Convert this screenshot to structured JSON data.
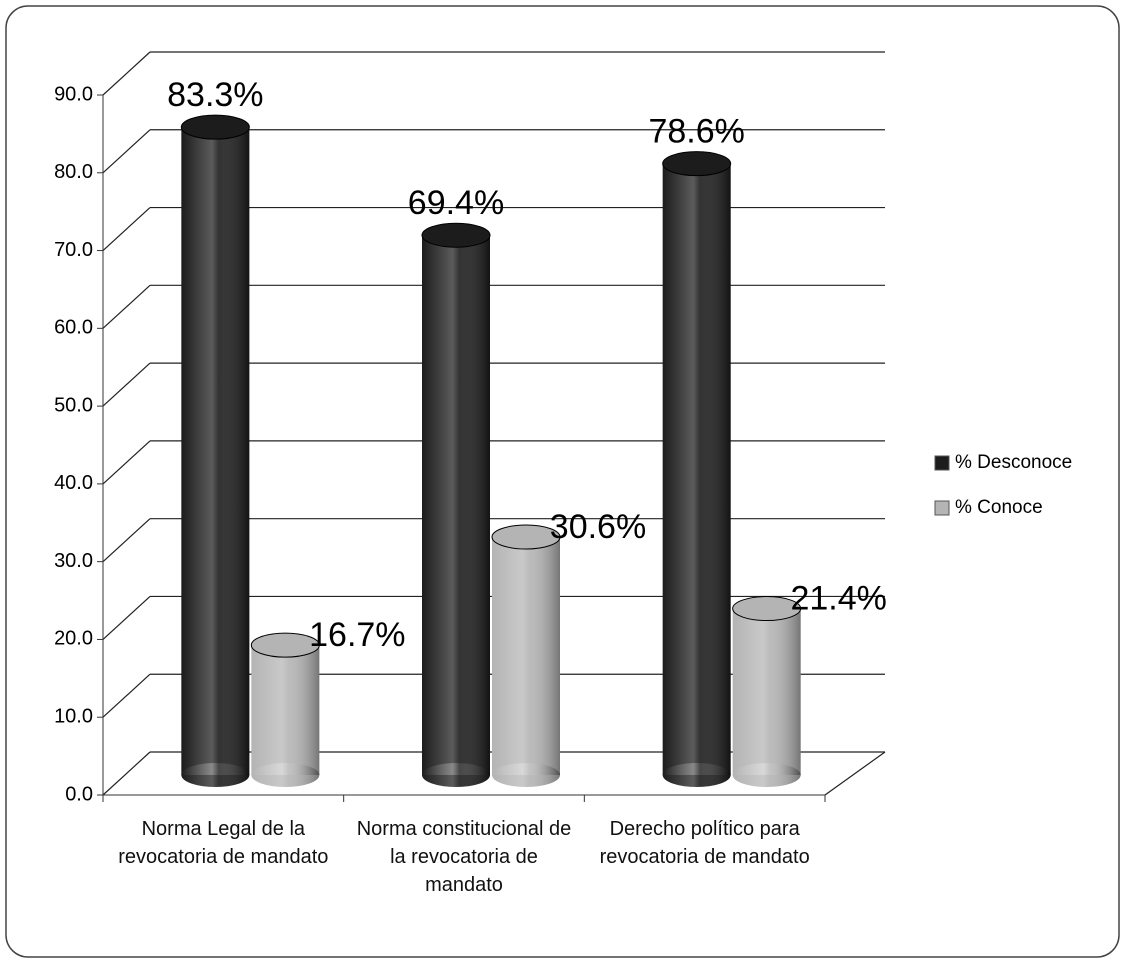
{
  "chart_data": {
    "type": "bar3d",
    "categories": [
      "Norma Legal de la revocatoria de mandato",
      "Norma constitucional de la revocatoria de mandato",
      "Derecho político para revocatoria de mandato"
    ],
    "series": [
      {
        "name": "% Desconoce",
        "color": "#1c1c1c",
        "values": [
          83.3,
          69.4,
          78.6
        ],
        "value_labels": [
          "83.3%",
          "69.4%",
          "78.6%"
        ]
      },
      {
        "name": "% Conoce",
        "color": "#b4b4b4",
        "values": [
          16.7,
          30.6,
          21.4
        ],
        "value_labels": [
          "16.7%",
          "30.6%",
          "21.4%"
        ]
      }
    ],
    "ylim": [
      0,
      90
    ],
    "yticks": [
      {
        "value": 0,
        "label": "0.0"
      },
      {
        "value": 10,
        "label": "10.0"
      },
      {
        "value": 20,
        "label": "20.0"
      },
      {
        "value": 30,
        "label": "30.0"
      },
      {
        "value": 40,
        "label": "40.0"
      },
      {
        "value": 50,
        "label": "50.0"
      },
      {
        "value": 60,
        "label": "60.0"
      },
      {
        "value": 70,
        "label": "70.0"
      },
      {
        "value": 80,
        "label": "80.0"
      },
      {
        "value": 90,
        "label": "90.0"
      }
    ],
    "grid": true,
    "legend": "right"
  }
}
